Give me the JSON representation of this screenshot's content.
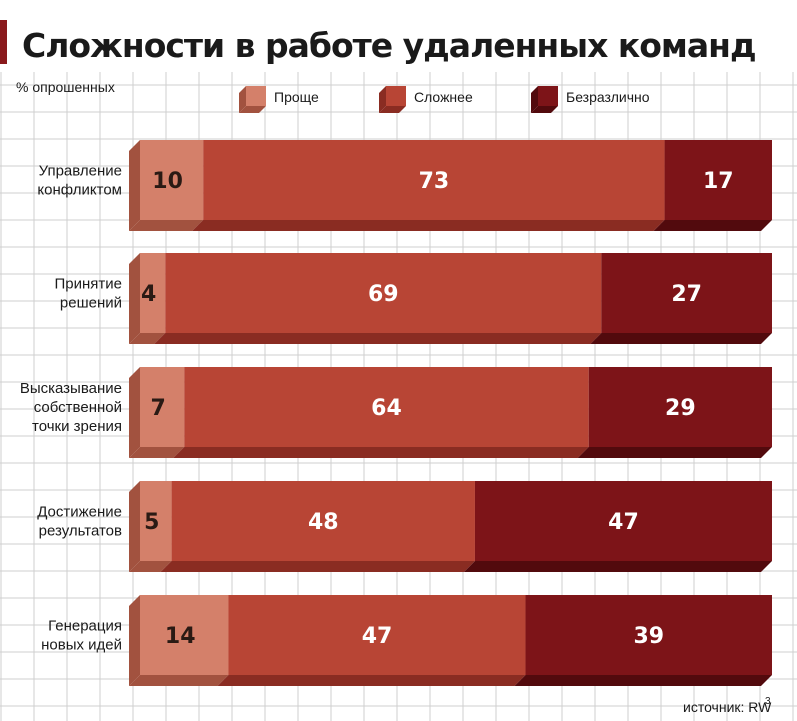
{
  "chart_data": {
    "type": "bar",
    "stacked": true,
    "orientation": "horizontal",
    "title": "Сложности в работе удаленных команд",
    "unit_label": "% опрошенных",
    "categories": [
      "Управление конфликтом",
      "Принятие решений",
      "Высказывание собственной точки зрения",
      "Достижение результатов",
      "Генерация новых идей"
    ],
    "category_lines": [
      [
        "Управление",
        "конфликтом"
      ],
      [
        "Принятие",
        "решений"
      ],
      [
        "Высказывание",
        "собственной",
        "точки зрения"
      ],
      [
        "Достижение",
        "результатов"
      ],
      [
        "Генерация",
        "новых идей"
      ]
    ],
    "series": [
      {
        "name": "Проще",
        "values": [
          10,
          4,
          7,
          5,
          14
        ]
      },
      {
        "name": "Сложнее",
        "values": [
          73,
          69,
          64,
          48,
          47
        ]
      },
      {
        "name": "Безразлично",
        "values": [
          17,
          27,
          29,
          47,
          39
        ]
      }
    ],
    "xlim": [
      0,
      100
    ],
    "grid": true,
    "legend": "top"
  },
  "colors": {
    "series": [
      "#d4806a",
      "#b84535",
      "#7d1418"
    ],
    "series_dark": [
      "#a2523f",
      "#8a2c22",
      "#520a0d"
    ],
    "value_text": [
      "#2a1a14",
      "#ffffff",
      "#ffffff"
    ],
    "title_bar": "#8a1a1c",
    "grid": "#cfcfcf"
  },
  "source": {
    "label": "источник: RW",
    "superscript": "3"
  }
}
